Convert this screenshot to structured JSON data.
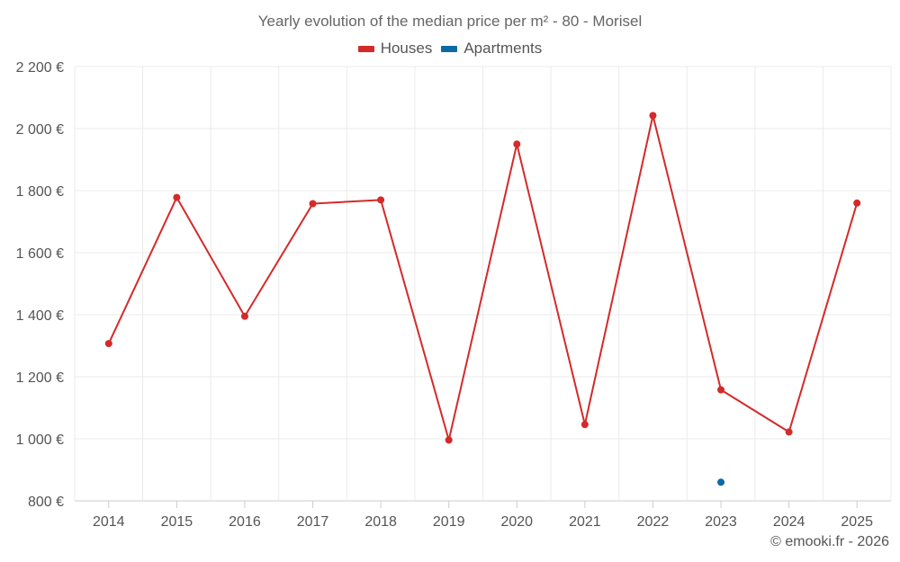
{
  "chart_data": {
    "type": "line",
    "title": "Yearly evolution of the median price per m² - 80 - Morisel",
    "categories": [
      "2014",
      "2015",
      "2016",
      "2017",
      "2018",
      "2019",
      "2020",
      "2021",
      "2022",
      "2023",
      "2024",
      "2025"
    ],
    "y_ticks": [
      800,
      1000,
      1200,
      1400,
      1600,
      1800,
      2000,
      2200
    ],
    "y_tick_labels": [
      "800 €",
      "1 000 €",
      "1 200 €",
      "1 400 €",
      "1 600 €",
      "1 800 €",
      "2 000 €",
      "2 200 €"
    ],
    "ylim": [
      800,
      2200
    ],
    "grid": true,
    "legend_position": "top-center",
    "series": [
      {
        "name": "Houses",
        "color": "#d42a2a",
        "values": [
          1307,
          1778,
          1395,
          1758,
          1770,
          996,
          1950,
          1046,
          2042,
          1158,
          1022,
          1760
        ]
      },
      {
        "name": "Apartments",
        "color": "#0e6aa6",
        "values": [
          null,
          null,
          null,
          null,
          null,
          null,
          null,
          null,
          null,
          860,
          null,
          null
        ]
      }
    ]
  },
  "credit": "© emooki.fr - 2026"
}
